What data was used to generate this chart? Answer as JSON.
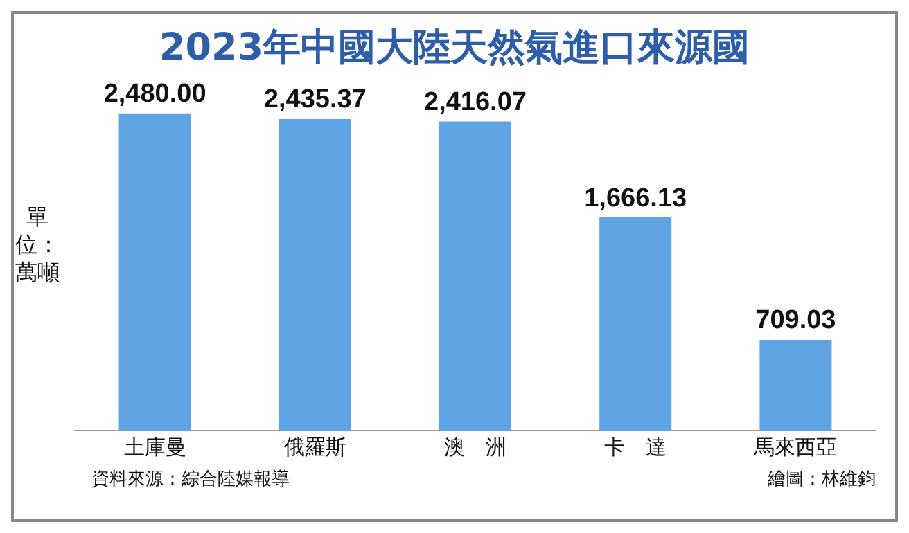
{
  "chart_data": {
    "type": "bar",
    "title": "2023年中國大陸天然氣進口來源國",
    "ylabel": "單位：萬噸",
    "categories": [
      "土庫曼",
      "俄羅斯",
      "澳　洲",
      "卡　達",
      "馬來西亞"
    ],
    "values": [
      2480.0,
      2435.37,
      2416.07,
      1666.13,
      709.03
    ],
    "value_labels": [
      "2,480.00",
      "2,435.37",
      "2,416.07",
      "1,666.13",
      "709.03"
    ],
    "color": "#5fa4e2",
    "grid": false,
    "legend": false,
    "tick_labels": "x",
    "annotations": [
      "資料來源：綜合陸媒報導",
      "繪圖：林維鈞"
    ]
  }
}
